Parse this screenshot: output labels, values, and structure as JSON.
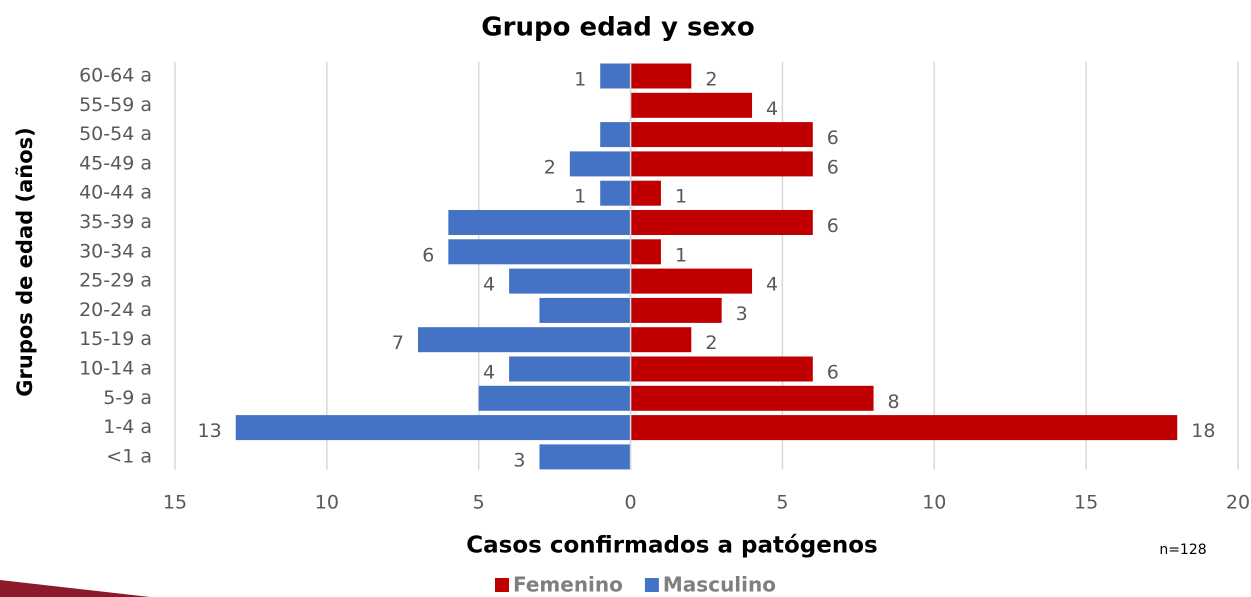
{
  "chart_data": {
    "type": "bar",
    "orientation": "horizontal",
    "stacked": false,
    "title": "Grupo edad y sexo",
    "x_label": "Casos confirmados a patógenos",
    "y_label": "Grupos de edad (años)",
    "note": "n=128",
    "categories": [
      "60-64 a",
      "55-59 a",
      "50-54 a",
      "45-49 a",
      "40-44 a",
      "35-39 a",
      "30-34 a",
      "25-29 a",
      "20-24 a",
      "15-19 a",
      "10-14 a",
      "5-9 a",
      "1-4 a",
      "<1 a"
    ],
    "series": [
      {
        "name": "Femenino",
        "color": "#c00000",
        "values": [
          2,
          4,
          6,
          6,
          1,
          6,
          1,
          4,
          3,
          2,
          6,
          8,
          18,
          0
        ],
        "value_labels": [
          "2",
          "4",
          "6",
          "6",
          "1",
          "6",
          "1",
          "4",
          "3",
          "2",
          "6",
          "8",
          "18",
          null
        ]
      },
      {
        "name": "Masculino",
        "color": "#4472c4",
        "values": [
          -1,
          0,
          -1,
          -2,
          -1,
          -6,
          -6,
          -4,
          -3,
          -7,
          -4,
          -5,
          -13,
          -3
        ],
        "value_labels": [
          "1",
          null,
          null,
          "2",
          "1",
          null,
          "6",
          "4",
          null,
          "7",
          "4",
          null,
          "13",
          "3"
        ]
      }
    ],
    "xlim": [
      -15,
      20
    ],
    "xticks": [
      {
        "value": -15,
        "label": "15"
      },
      {
        "value": -10,
        "label": "10"
      },
      {
        "value": -5,
        "label": "5"
      },
      0,
      5,
      10,
      15,
      20
    ],
    "grid": true,
    "legend": "bottom"
  }
}
